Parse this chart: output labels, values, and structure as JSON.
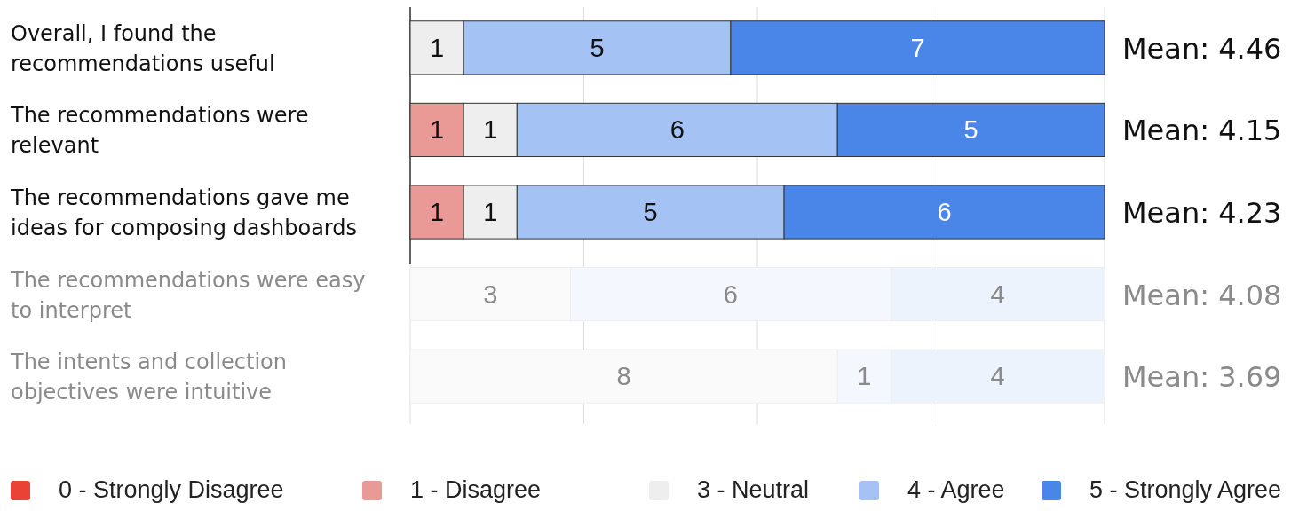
{
  "chart_data": {
    "type": "bar",
    "orientation": "horizontal",
    "stacked": true,
    "categories": [
      "Overall, I found the recommendations useful",
      "The recommendations were relevant",
      "The recommendations gave me ideas for composing dashboards",
      "The recommendations were easy to interpret",
      "The intents and collection objectives were intuitive"
    ],
    "series": [
      {
        "name": "0 - Strongly Disagree",
        "color": "#ea4335",
        "values": [
          null,
          null,
          null,
          null,
          null
        ]
      },
      {
        "name": "1 - Disagree",
        "color": "#e99a96",
        "values": [
          null,
          1,
          1,
          null,
          null
        ]
      },
      {
        "name": "3 - Neutral",
        "color": "#eeeeee",
        "colors": [
          "#eeeeee",
          "#eeeeee",
          "#eeeeee",
          "#fafafa",
          "#fafafa"
        ],
        "values": [
          1,
          1,
          1,
          3,
          8
        ]
      },
      {
        "name": "4 - Agree",
        "color": "#a4c2f4",
        "colors": [
          "#a4c2f4",
          "#a4c2f4",
          "#a4c2f4",
          "#f4f8fe",
          "#f4f8fe"
        ],
        "values": [
          5,
          6,
          5,
          6,
          1
        ]
      },
      {
        "name": "5 - Strongly Agree",
        "color": "#4a86e8",
        "colors": [
          "#4a86e8",
          "#4a86e8",
          "#4a86e8",
          "#edf3fd",
          "#edf3fd"
        ],
        "values": [
          7,
          5,
          6,
          4,
          4
        ]
      }
    ],
    "xlim": [
      0,
      13
    ],
    "xticks": [
      {
        "value": 0,
        "label": null
      },
      {
        "value": 3.25,
        "label": null
      },
      {
        "value": 6.5,
        "label": null
      },
      {
        "value": 9.75,
        "label": null
      },
      {
        "value": 13,
        "label": null
      }
    ],
    "grid": "x",
    "data_labels": true,
    "legend": "bottom",
    "tick_labels": "y",
    "annotations": [
      "Mean: 4.46",
      "Mean: 4.15",
      "Mean: 4.23",
      "Mean: 4.08",
      "Mean: 3.69"
    ]
  }
}
